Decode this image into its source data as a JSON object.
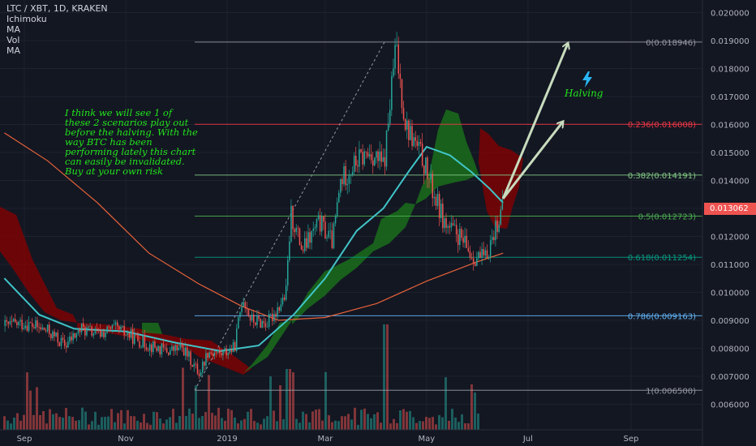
{
  "legend": {
    "title": "LTC / XBT, 1D, KRAKEN",
    "indicators": [
      "Ichimoku",
      "MA",
      "Vol",
      "MA"
    ]
  },
  "annotation_text": "I think we will see 1 of these 2 scenarios play out before the halving. With the way BTC has been performing lately this chart can easily be invalidated. Buy at your own risk",
  "halving_label": "Halving",
  "halving_icon": "lightning-icon",
  "last_price_label": "0.013062",
  "colors": {
    "background": "#131722",
    "candle_up": "#26a69a",
    "candle_down": "#ef5350",
    "ma_fast": "#40c4c8",
    "ma_slow": "#e8623a",
    "cloud_bull": "#1b7a1b",
    "cloud_bear": "#8b0000",
    "annotation": "#22e51b",
    "arrows": "#c8dcbe"
  },
  "chart_data": {
    "type": "candlestick",
    "title": "LTC / XBT, 1D, KRAKEN",
    "x_ticks": [
      "Sep",
      "Nov",
      "2019",
      "Mar",
      "May",
      "Jul",
      "Sep"
    ],
    "y_ticks": [
      "0.020000",
      "0.019000",
      "0.018000",
      "0.017000",
      "0.016000",
      "0.015000",
      "0.014000",
      "0.013000",
      "0.012000",
      "0.011000",
      "0.010000",
      "0.009000",
      "0.008000",
      "0.007000",
      "0.006000"
    ],
    "ylim": [
      0.0055,
      0.0203
    ],
    "fib_levels": [
      {
        "label": "0(0.018946)",
        "value": 0.018946,
        "color": "#9598a1"
      },
      {
        "label": "0.236(0.016008)",
        "value": 0.016008,
        "color": "#f23645"
      },
      {
        "label": "0.382(0.014191)",
        "value": 0.014191,
        "color": "#81c784"
      },
      {
        "label": "0.5(0.012723)",
        "value": 0.012723,
        "color": "#4caf50"
      },
      {
        "label": "0.618(0.011254)",
        "value": 0.011254,
        "color": "#089981"
      },
      {
        "label": "0.786(0.009163)",
        "value": 0.009163,
        "color": "#64b5f6"
      },
      {
        "label": "1(0.006500)",
        "value": 0.0065,
        "color": "#9598a1"
      }
    ],
    "close_path": [
      [
        "2018-08-20",
        0.0088
      ],
      [
        "2018-09-01",
        0.0089
      ],
      [
        "2018-09-15",
        0.0086
      ],
      [
        "2018-09-25",
        0.0081
      ],
      [
        "2018-10-05",
        0.0087
      ],
      [
        "2018-10-15",
        0.0085
      ],
      [
        "2018-10-25",
        0.0087
      ],
      [
        "2018-11-05",
        0.0084
      ],
      [
        "2018-11-15",
        0.0081
      ],
      [
        "2018-11-25",
        0.0079
      ],
      [
        "2018-12-05",
        0.008
      ],
      [
        "2018-12-15",
        0.0071
      ],
      [
        "2018-12-20",
        0.0079
      ],
      [
        "2018-12-28",
        0.0078
      ],
      [
        "2019-01-05",
        0.008
      ],
      [
        "2019-01-10",
        0.0099
      ],
      [
        "2019-01-15",
        0.009
      ],
      [
        "2019-01-25",
        0.0089
      ],
      [
        "2019-02-05",
        0.0099
      ],
      [
        "2019-02-08",
        0.0128
      ],
      [
        "2019-02-15",
        0.0115
      ],
      [
        "2019-02-25",
        0.0125
      ],
      [
        "2019-03-05",
        0.0118
      ],
      [
        "2019-03-10",
        0.014
      ],
      [
        "2019-03-20",
        0.0147
      ],
      [
        "2019-03-28",
        0.015
      ],
      [
        "2019-04-05",
        0.0145
      ],
      [
        "2019-04-12",
        0.0188
      ],
      [
        "2019-04-18",
        0.016
      ],
      [
        "2019-04-28",
        0.0148
      ],
      [
        "2019-05-05",
        0.0135
      ],
      [
        "2019-05-12",
        0.0124
      ],
      [
        "2019-05-20",
        0.012
      ],
      [
        "2019-05-28",
        0.0113
      ],
      [
        "2019-06-05",
        0.0112
      ],
      [
        "2019-06-12",
        0.0125
      ],
      [
        "2019-06-16",
        0.013062
      ]
    ],
    "ma_fast": [
      [
        "2018-08-20",
        0.0105
      ],
      [
        "2018-09-10",
        0.0092
      ],
      [
        "2018-10-01",
        0.0087
      ],
      [
        "2018-11-01",
        0.0086
      ],
      [
        "2018-12-01",
        0.0082
      ],
      [
        "2018-12-28",
        0.0079
      ],
      [
        "2019-01-20",
        0.0081
      ],
      [
        "2019-02-10",
        0.0092
      ],
      [
        "2019-03-01",
        0.0105
      ],
      [
        "2019-03-20",
        0.0122
      ],
      [
        "2019-04-05",
        0.013
      ],
      [
        "2019-04-20",
        0.0143
      ],
      [
        "2019-05-01",
        0.0152
      ],
      [
        "2019-05-15",
        0.0149
      ],
      [
        "2019-05-28",
        0.0143
      ],
      [
        "2019-06-08",
        0.0137
      ],
      [
        "2019-06-16",
        0.0132
      ]
    ],
    "ma_slow": [
      [
        "2018-08-20",
        0.0157
      ],
      [
        "2018-09-15",
        0.0147
      ],
      [
        "2018-10-15",
        0.0132
      ],
      [
        "2018-11-15",
        0.0114
      ],
      [
        "2018-12-15",
        0.0103
      ],
      [
        "2019-01-10",
        0.0095
      ],
      [
        "2019-02-01",
        0.009
      ],
      [
        "2019-03-01",
        0.0091
      ],
      [
        "2019-04-01",
        0.0096
      ],
      [
        "2019-05-01",
        0.0104
      ],
      [
        "2019-06-01",
        0.0111
      ],
      [
        "2019-06-16",
        0.0114
      ]
    ],
    "projections": [
      {
        "from": [
          "2019-06-16",
          0.01335
        ],
        "to": [
          "2019-07-25",
          0.0189
        ]
      },
      {
        "from": [
          "2019-06-16",
          0.01335
        ],
        "to": [
          "2019-07-22",
          0.0161
        ]
      }
    ]
  }
}
